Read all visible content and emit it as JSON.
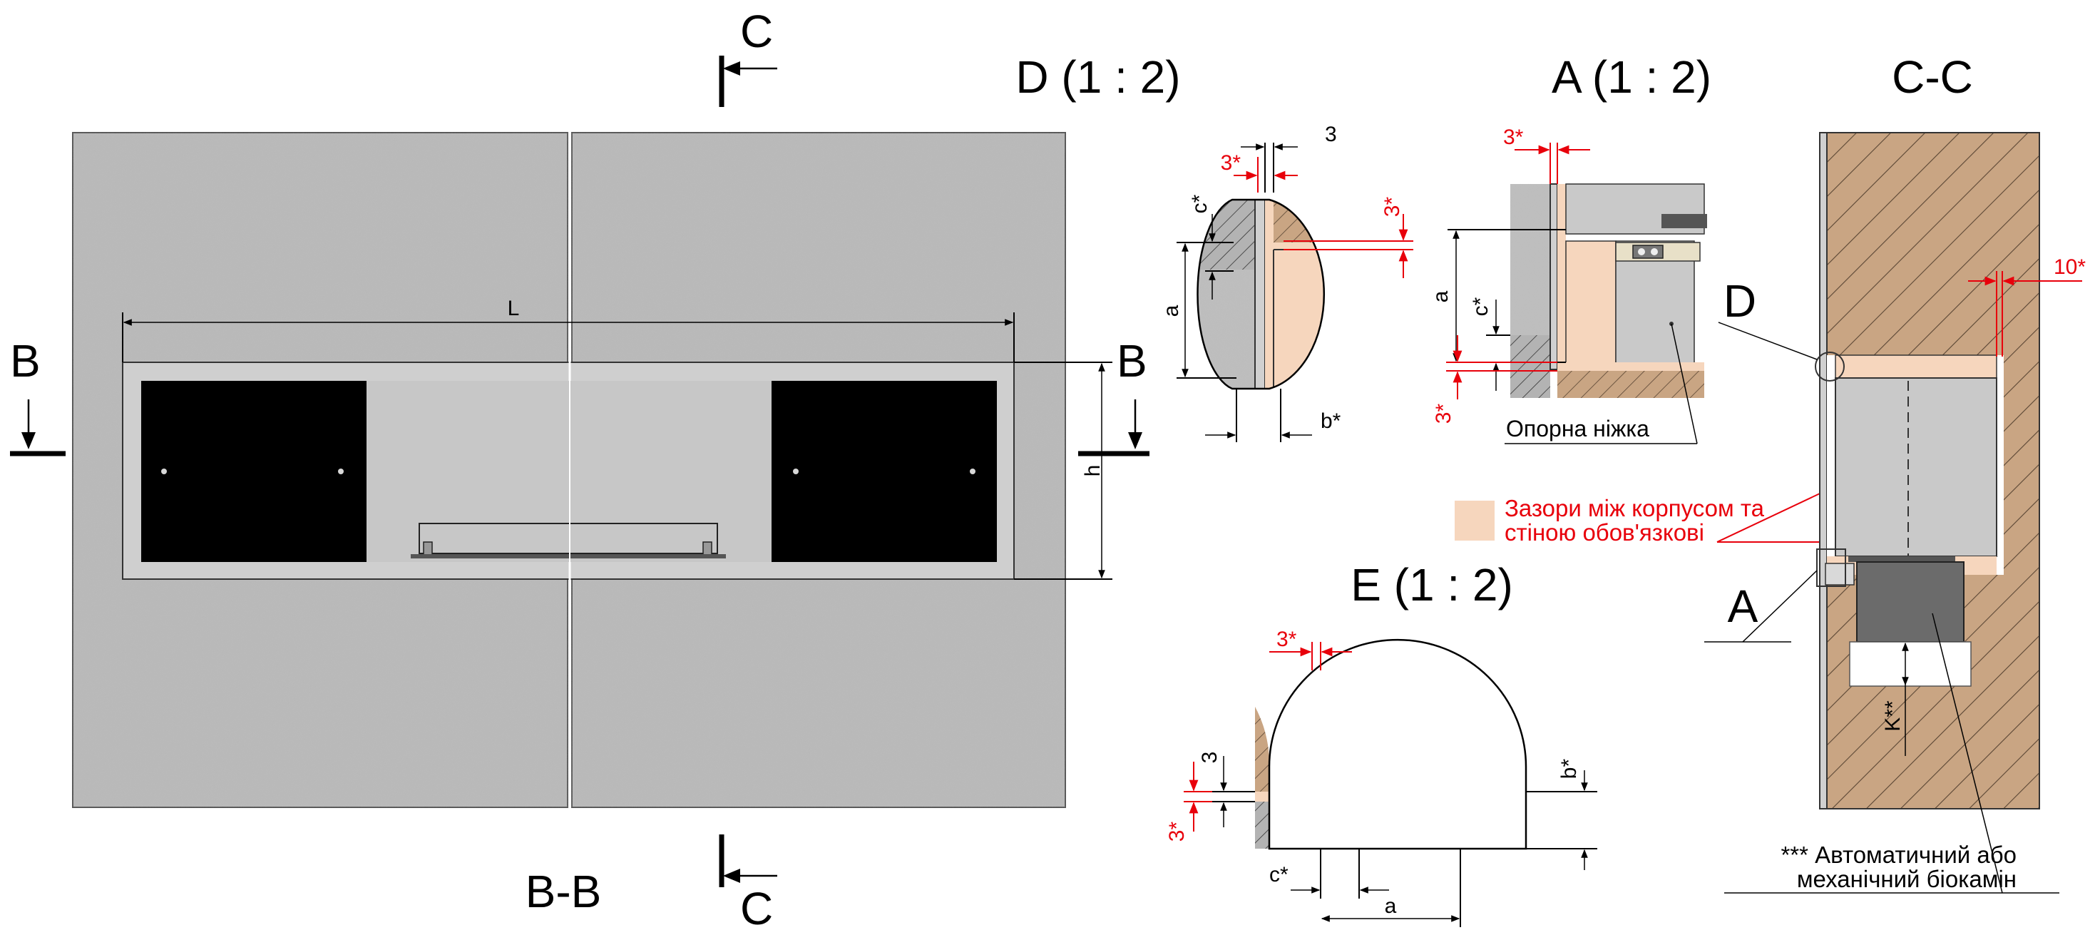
{
  "section_markers": {
    "c_top": "C",
    "c_bottom": "C",
    "b_left": "B",
    "b_right": "B"
  },
  "main_view": {
    "title": "B-B",
    "dim_length": "L",
    "dim_height": "h"
  },
  "detail_d": {
    "title": "D (1 : 2)",
    "dims": {
      "top": "3",
      "red_gap_top": "3*",
      "red_gap_side": "3*",
      "c": "c*",
      "a": "a",
      "b": "b*"
    }
  },
  "detail_a": {
    "title": "A (1 : 2)",
    "dims": {
      "red_gap_top": "3*",
      "a": "a",
      "c": "c*",
      "red_gap_side": "3*"
    },
    "callout": "Опорна ніжка"
  },
  "legend": {
    "swatch_color": "#f6d6bd",
    "line1": "Зазори між корпусом та",
    "line2": "стіною обов'язкові"
  },
  "detail_e": {
    "title": "E (1 : 2)",
    "dims": {
      "red_gap_top": "3*",
      "gap": "3",
      "red_gap_side": "3*",
      "b": "b*",
      "c": "c*",
      "a": "a"
    }
  },
  "section_cc": {
    "title": "C-C",
    "label_d": "D",
    "label_a": "A",
    "dim_red": "10*",
    "dim_k": "K**",
    "note_line1": "*** Автоматичний або",
    "note_line2": "механічний біокамін"
  },
  "colors": {
    "accent_red": "#e8000b",
    "gap_fill": "#f6d6bd",
    "concrete": "#b9b9b9",
    "wood_section": "#c9a583",
    "panel_black": "#000000",
    "insert_grey": "#c7c7c7"
  }
}
